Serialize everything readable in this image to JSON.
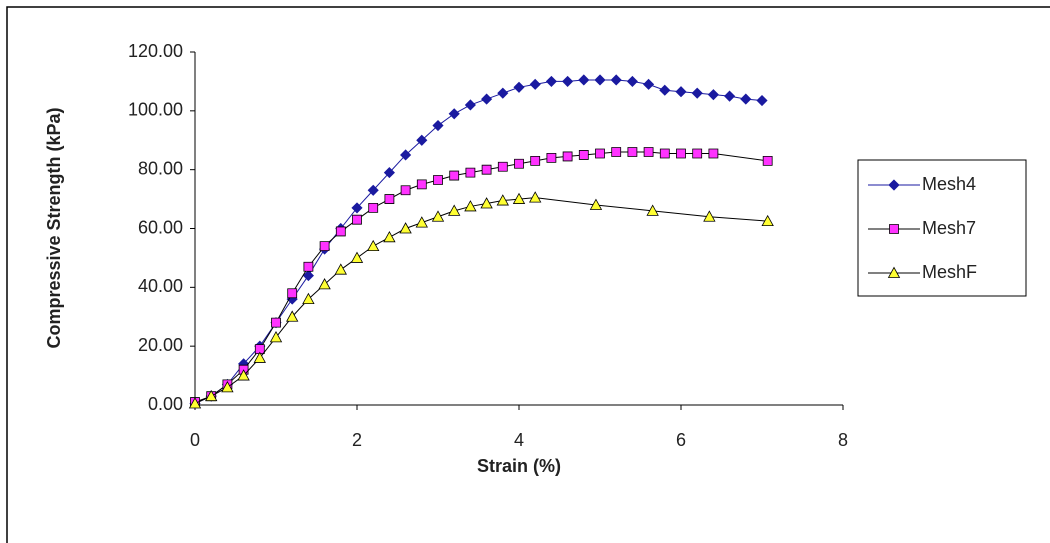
{
  "chart_data": {
    "type": "line",
    "xlabel": "Strain (%)",
    "ylabel": "Compressive Strength (kPa)",
    "xlim": [
      0,
      8
    ],
    "xticks": [
      0,
      2,
      4,
      6,
      8
    ],
    "ylim": [
      0,
      120
    ],
    "yticks": [
      {
        "value": 0,
        "label": "0.00"
      },
      {
        "value": 20,
        "label": "20.00"
      },
      {
        "value": 40,
        "label": "40.00"
      },
      {
        "value": 60,
        "label": "60.00"
      },
      {
        "value": 80,
        "label": "80.00"
      },
      {
        "value": 100,
        "label": "100.00"
      },
      {
        "value": 120,
        "label": "120.00"
      }
    ],
    "legend": "right",
    "series": [
      {
        "name": "Mesh4",
        "color": "#1a1aa0",
        "line_color": "#1a1aa0",
        "marker": "diamond",
        "x": [
          0,
          0.2,
          0.4,
          0.6,
          0.8,
          1.0,
          1.2,
          1.4,
          1.6,
          1.8,
          2.0,
          2.2,
          2.4,
          2.6,
          2.8,
          3.0,
          3.2,
          3.4,
          3.6,
          3.8,
          4.0,
          4.2,
          4.4,
          4.6,
          4.8,
          5.0,
          5.2,
          5.4,
          5.6,
          5.8,
          6.0,
          6.2,
          6.4,
          6.6,
          6.8,
          7.0
        ],
        "values": [
          0.5,
          3,
          7,
          14,
          20,
          28,
          36,
          44,
          53,
          60,
          67,
          73,
          79,
          85,
          90,
          95,
          99,
          102,
          104,
          106,
          108,
          109,
          110,
          110,
          110.5,
          110.5,
          110.5,
          110,
          109,
          107,
          106.5,
          106,
          105.5,
          105,
          104,
          103.5
        ]
      },
      {
        "name": "Mesh7",
        "color": "#ff33ff",
        "line_color": "#000000",
        "marker": "square",
        "x": [
          0,
          0.2,
          0.4,
          0.6,
          0.8,
          1.0,
          1.2,
          1.4,
          1.6,
          1.8,
          2.0,
          2.2,
          2.4,
          2.6,
          2.8,
          3.0,
          3.2,
          3.4,
          3.6,
          3.8,
          4.0,
          4.2,
          4.4,
          4.6,
          4.8,
          5.0,
          5.2,
          5.4,
          5.6,
          5.8,
          6.0,
          6.2,
          6.4,
          7.07
        ],
        "values": [
          1,
          3,
          7,
          12,
          19,
          28,
          38,
          47,
          54,
          59,
          63,
          67,
          70,
          73,
          75,
          76.5,
          78,
          79,
          80,
          81,
          82,
          83,
          84,
          84.5,
          85,
          85.5,
          86,
          86,
          86,
          85.5,
          85.5,
          85.5,
          85.5,
          83
        ]
      },
      {
        "name": "MeshF",
        "color": "#ffff33",
        "line_color": "#000000",
        "marker": "triangle",
        "x": [
          0,
          0.2,
          0.4,
          0.6,
          0.8,
          1.0,
          1.2,
          1.4,
          1.6,
          1.8,
          2.0,
          2.2,
          2.4,
          2.6,
          2.8,
          3.0,
          3.2,
          3.4,
          3.6,
          3.8,
          4.0,
          4.2,
          4.95,
          5.65,
          6.35,
          7.07
        ],
        "values": [
          0.5,
          3,
          6,
          10,
          16,
          23,
          30,
          36,
          41,
          46,
          50,
          54,
          57,
          60,
          62,
          64,
          66,
          67.5,
          68.5,
          69.5,
          70,
          70.5,
          68,
          66,
          64,
          62.5
        ]
      }
    ]
  }
}
